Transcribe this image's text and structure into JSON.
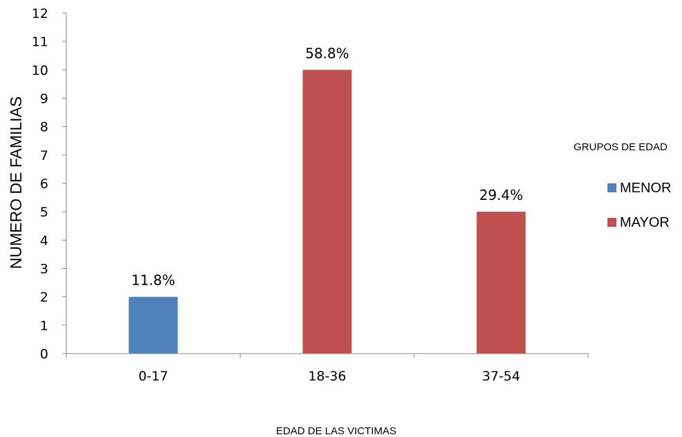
{
  "chart_data": {
    "type": "bar",
    "categories": [
      "0-17",
      "18-36",
      "37-54"
    ],
    "series": [
      {
        "name": "MENOR",
        "color": "#4f81bd",
        "values": [
          2,
          null,
          null
        ]
      },
      {
        "name": "MAYOR",
        "color": "#c0504d",
        "values": [
          null,
          10,
          5
        ]
      }
    ],
    "data_labels": [
      "11.8%",
      "58.8%",
      "29.4%"
    ],
    "xlabel": "EDAD DE LAS VICTIMAS",
    "ylabel": "NUMERO DE FAMILIAS",
    "ylim": [
      0,
      12
    ],
    "yticks": [
      0,
      1,
      2,
      3,
      4,
      5,
      6,
      7,
      8,
      9,
      10,
      11,
      12
    ],
    "grid": false,
    "legend": {
      "title": "GRUPOS DE EDAD",
      "placement": "right"
    }
  }
}
